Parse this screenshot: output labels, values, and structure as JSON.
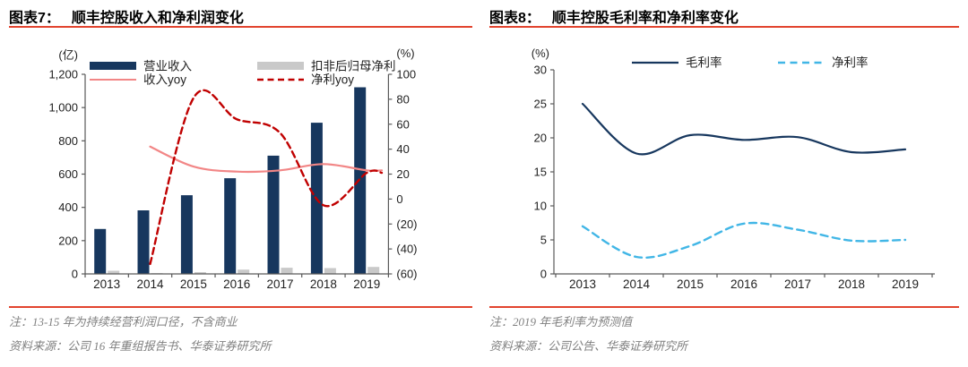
{
  "colors": {
    "rule_red": "#e2432e",
    "axis_gray": "#595959",
    "note_gray": "#808080",
    "navy": "#17375e",
    "bar_gray": "#c9c9c9",
    "salmon": "#f28686",
    "dark_red": "#c00000",
    "sky_blue": "#41b6e6"
  },
  "figures": [
    {
      "label": "图表7：",
      "title": "顺丰控股收入和净利润变化",
      "note": "注：13-15 年为持续经营利润口径，不含商业",
      "source": "资料来源：公司 16 年重组报告书、华泰证券研究所"
    },
    {
      "label": "图表8：",
      "title": "顺丰控股毛利率和净利率变化",
      "note": "注：2019 年毛利率为预测值",
      "source": "资料来源：公司公告、华泰证券研究所"
    }
  ],
  "chart_data": [
    {
      "type": "bar",
      "title": "顺丰控股收入和净利润变化",
      "categories": [
        "2013",
        "2014",
        "2015",
        "2016",
        "2017",
        "2018",
        "2019"
      ],
      "legend_position": "top",
      "grid": false,
      "left_axis": {
        "unit": "(亿)",
        "min": 0,
        "max": 1200,
        "ticks": [
          {
            "v": 0,
            "label": "0"
          },
          {
            "v": 200,
            "label": "200"
          },
          {
            "v": 400,
            "label": "400"
          },
          {
            "v": 600,
            "label": "600"
          },
          {
            "v": 800,
            "label": "800"
          },
          {
            "v": 1000,
            "label": "1,000"
          },
          {
            "v": 1200,
            "label": "1,200"
          }
        ]
      },
      "right_axis": {
        "unit": "(%)",
        "min": -60,
        "max": 100,
        "ticks": [
          {
            "v": -60,
            "label": "(60)"
          },
          {
            "v": -40,
            "label": "(40)"
          },
          {
            "v": -20,
            "label": "(20)"
          },
          {
            "v": 0,
            "label": "0"
          },
          {
            "v": 20,
            "label": "20"
          },
          {
            "v": 40,
            "label": "40"
          },
          {
            "v": 60,
            "label": "60"
          },
          {
            "v": 80,
            "label": "80"
          },
          {
            "v": 100,
            "label": "100"
          }
        ]
      },
      "series": [
        {
          "name": "营业收入",
          "kind": "bar",
          "axis": "left",
          "color": "#17375e",
          "values": [
            270,
            382,
            473,
            575,
            711,
            909,
            1122
          ]
        },
        {
          "name": "扣非后归母净利",
          "kind": "bar",
          "axis": "left",
          "color": "#c9c9c9",
          "values": [
            19,
            5,
            11,
            26,
            37,
            35,
            42
          ]
        },
        {
          "name": "收入yoy",
          "kind": "line",
          "dash": false,
          "axis": "right",
          "color": "#f28686",
          "values": [
            null,
            42,
            26,
            22,
            23,
            28,
            23
          ]
        },
        {
          "name": "净利yoy",
          "kind": "line",
          "dash": true,
          "axis": "right",
          "color": "#c00000",
          "values": [
            null,
            -52,
            81,
            64,
            53,
            -5,
            21
          ]
        }
      ]
    },
    {
      "type": "line",
      "title": "顺丰控股毛利率和净利率变化",
      "categories": [
        "2013",
        "2014",
        "2015",
        "2016",
        "2017",
        "2018",
        "2019"
      ],
      "legend_position": "top",
      "grid": false,
      "y_axis": {
        "unit": "(%)",
        "min": 0,
        "max": 30,
        "ticks": [
          {
            "v": 0,
            "label": "0"
          },
          {
            "v": 5,
            "label": "5"
          },
          {
            "v": 10,
            "label": "10"
          },
          {
            "v": 15,
            "label": "15"
          },
          {
            "v": 20,
            "label": "20"
          },
          {
            "v": 25,
            "label": "25"
          },
          {
            "v": 30,
            "label": "30"
          }
        ]
      },
      "series": [
        {
          "name": "毛利率",
          "kind": "line",
          "dash": false,
          "color": "#17375e",
          "values": [
            25.0,
            17.7,
            20.4,
            19.7,
            20.1,
            17.9,
            18.3
          ]
        },
        {
          "name": "净利率",
          "kind": "line",
          "dash": true,
          "color": "#41b6e6",
          "values": [
            7.0,
            2.5,
            4.1,
            7.4,
            6.5,
            4.9,
            5.0
          ]
        }
      ]
    }
  ]
}
